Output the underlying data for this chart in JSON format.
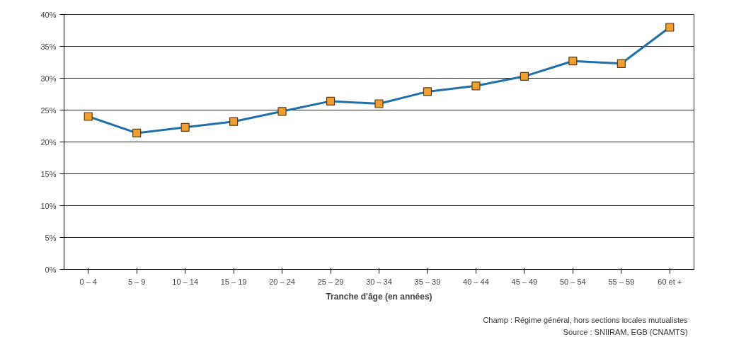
{
  "chart_data": {
    "type": "line",
    "xlabel": "Tranche d'âge (en années)",
    "categories": [
      "0 – 4",
      "5 – 9",
      "10 – 14",
      "15 – 19",
      "20 – 24",
      "25 – 29",
      "30 – 34",
      "35 – 39",
      "40 – 44",
      "45 – 49",
      "50 – 54",
      "55 – 59",
      "60 et +"
    ],
    "series": [
      {
        "color": "#1f6fa8",
        "values": [
          24.0,
          21.4,
          22.3,
          23.2,
          24.8,
          26.4,
          26.0,
          27.9,
          28.8,
          30.3,
          32.7,
          32.3,
          38.0
        ]
      }
    ],
    "ylim": [
      0,
      40
    ],
    "yticks": [
      {
        "value": 0,
        "label": "0%"
      },
      {
        "value": 5,
        "label": "5%"
      },
      {
        "value": 10,
        "label": "10%"
      },
      {
        "value": 15,
        "label": "15%"
      },
      {
        "value": 20,
        "label": "20%"
      },
      {
        "value": 25,
        "label": "25%"
      },
      {
        "value": 30,
        "label": "30%"
      },
      {
        "value": 35,
        "label": "35%"
      },
      {
        "value": 40,
        "label": "40%"
      }
    ],
    "grid": "y",
    "marker": "square",
    "line_style": "solid",
    "annotations": [
      "Champ : Régime général, hors sections locales mutualistes",
      "Source : SNIIRAM, EGB (CNAMTS)"
    ]
  }
}
